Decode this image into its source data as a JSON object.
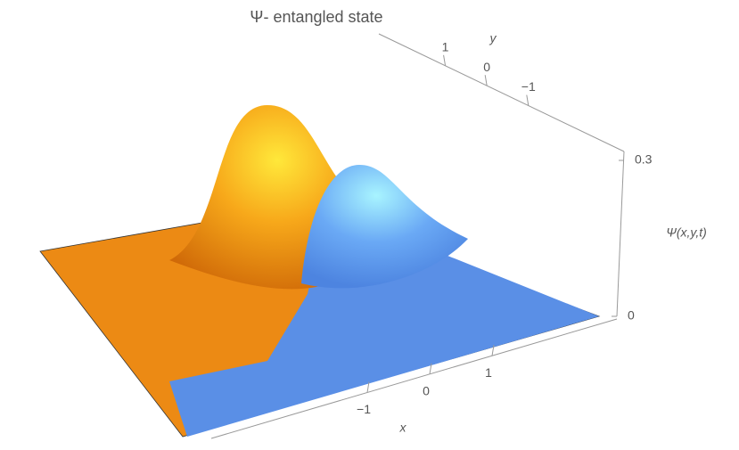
{
  "chart_data": {
    "type": "surface3d",
    "title": "Ψ- entangled state",
    "xlabel": "x",
    "ylabel": "y",
    "zlabel": "Ψ(x,y,t)",
    "xlim": [
      -3.5,
      3
    ],
    "xticks": [
      {
        "value": -1,
        "label": "−1"
      },
      0,
      1
    ],
    "ylim": [
      2.6,
      -3.3
    ],
    "yticks": [
      1,
      0,
      {
        "value": -1,
        "label": "−1"
      }
    ],
    "zlim": [
      0,
      0.3
    ],
    "zticks": [
      0,
      0.3
    ]
  }
}
